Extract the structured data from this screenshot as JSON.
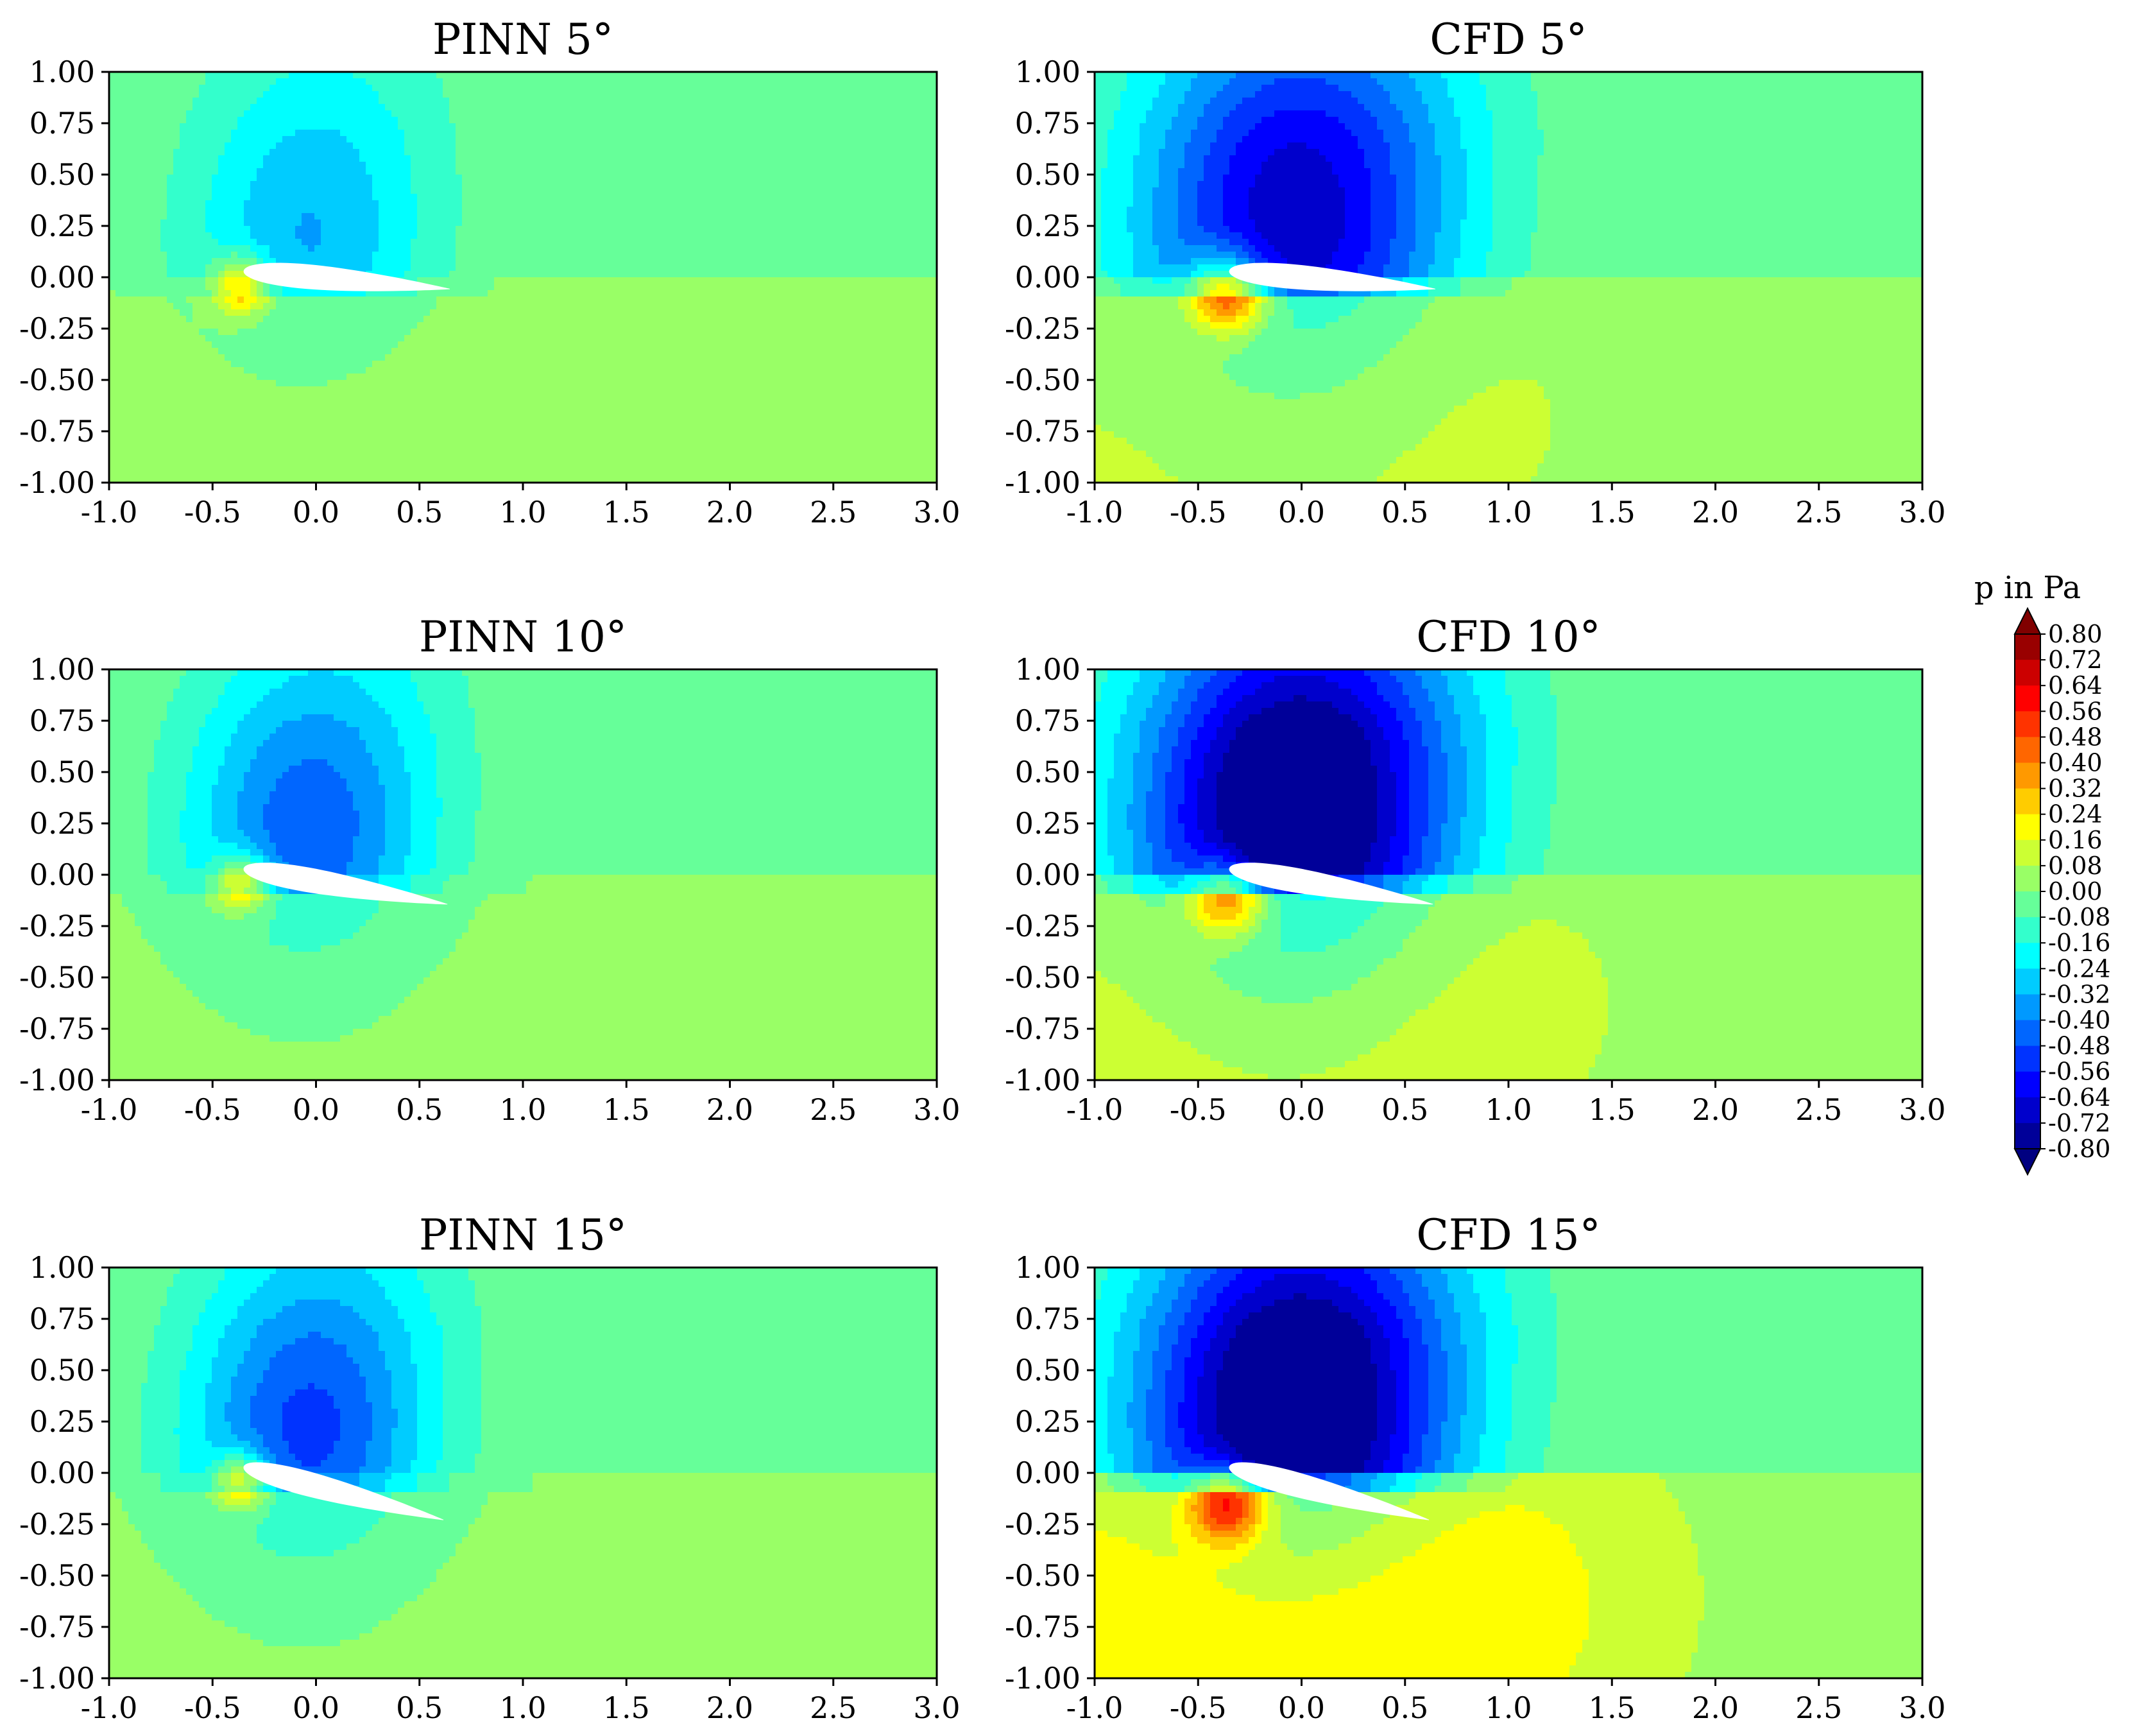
{
  "chart_data": [
    {
      "type": "heatmap",
      "title": "PINN 5°",
      "variable": "p",
      "alpha_deg": 5,
      "xlim": [
        -1.0,
        3.0
      ],
      "ylim": [
        -1.0,
        1.0
      ],
      "field": {
        "leading_edge_min": 0.4,
        "upper_surface_min": -0.28,
        "wake_max": 0.06
      }
    },
    {
      "type": "heatmap",
      "title": "CFD 5°",
      "variable": "p",
      "alpha_deg": 5,
      "xlim": [
        -1.0,
        3.0
      ],
      "ylim": [
        -1.0,
        1.0
      ],
      "field": {
        "leading_edge_max": 0.56,
        "upper_surface_min": -0.6,
        "lower_max": 0.16
      }
    },
    {
      "type": "heatmap",
      "title": "PINN 10°",
      "variable": "p",
      "alpha_deg": 10,
      "xlim": [
        -1.0,
        3.0
      ],
      "ylim": [
        -1.0,
        1.0
      ],
      "field": {
        "leading_edge_max": 0.4,
        "upper_surface_min": -0.4,
        "wake_max": 0.04
      }
    },
    {
      "type": "heatmap",
      "title": "CFD 10°",
      "variable": "p",
      "alpha_deg": 10,
      "xlim": [
        -1.0,
        3.0
      ],
      "ylim": [
        -1.0,
        1.0
      ],
      "field": {
        "leading_edge_max": 0.48,
        "upper_surface_min": -0.8,
        "lower_max": 0.2
      }
    },
    {
      "type": "heatmap",
      "title": "PINN 15°",
      "variable": "p",
      "alpha_deg": 15,
      "xlim": [
        -1.0,
        3.0
      ],
      "ylim": [
        -1.0,
        1.0
      ],
      "field": {
        "leading_edge_max": 0.4,
        "upper_surface_min": -0.44,
        "wake_max": 0.04
      }
    },
    {
      "type": "heatmap",
      "title": "CFD 15°",
      "variable": "p",
      "alpha_deg": 15,
      "xlim": [
        -1.0,
        3.0
      ],
      "ylim": [
        -1.0,
        1.0
      ],
      "field": {
        "leading_edge_max": 0.56,
        "upper_surface_min": -0.8,
        "lower_max": 0.36
      }
    }
  ],
  "axes": {
    "xticks": [
      "-1.0",
      "-0.5",
      "0.0",
      "0.5",
      "1.0",
      "1.5",
      "2.0",
      "2.5",
      "3.0"
    ],
    "yticks": [
      "1.00",
      "0.75",
      "0.50",
      "0.25",
      "0.00",
      "-0.25",
      "-0.50",
      "-0.75",
      "-1.00"
    ]
  },
  "colorbar": {
    "title": "p in Pa",
    "vmin": -0.8,
    "vmax": 0.8,
    "extend": "both",
    "ticks": [
      "0.80",
      "0.72",
      "0.64",
      "0.56",
      "0.48",
      "0.40",
      "0.32",
      "0.24",
      "0.16",
      "0.08",
      "0.00",
      "-0.08",
      "-0.16",
      "-0.24",
      "-0.32",
      "-0.40",
      "-0.48",
      "-0.56",
      "-0.64",
      "-0.72",
      "-0.80"
    ],
    "colormap": "jet",
    "colors": {
      "high": "#800000",
      "mid": "#80ff80",
      "low": "#000080"
    }
  }
}
